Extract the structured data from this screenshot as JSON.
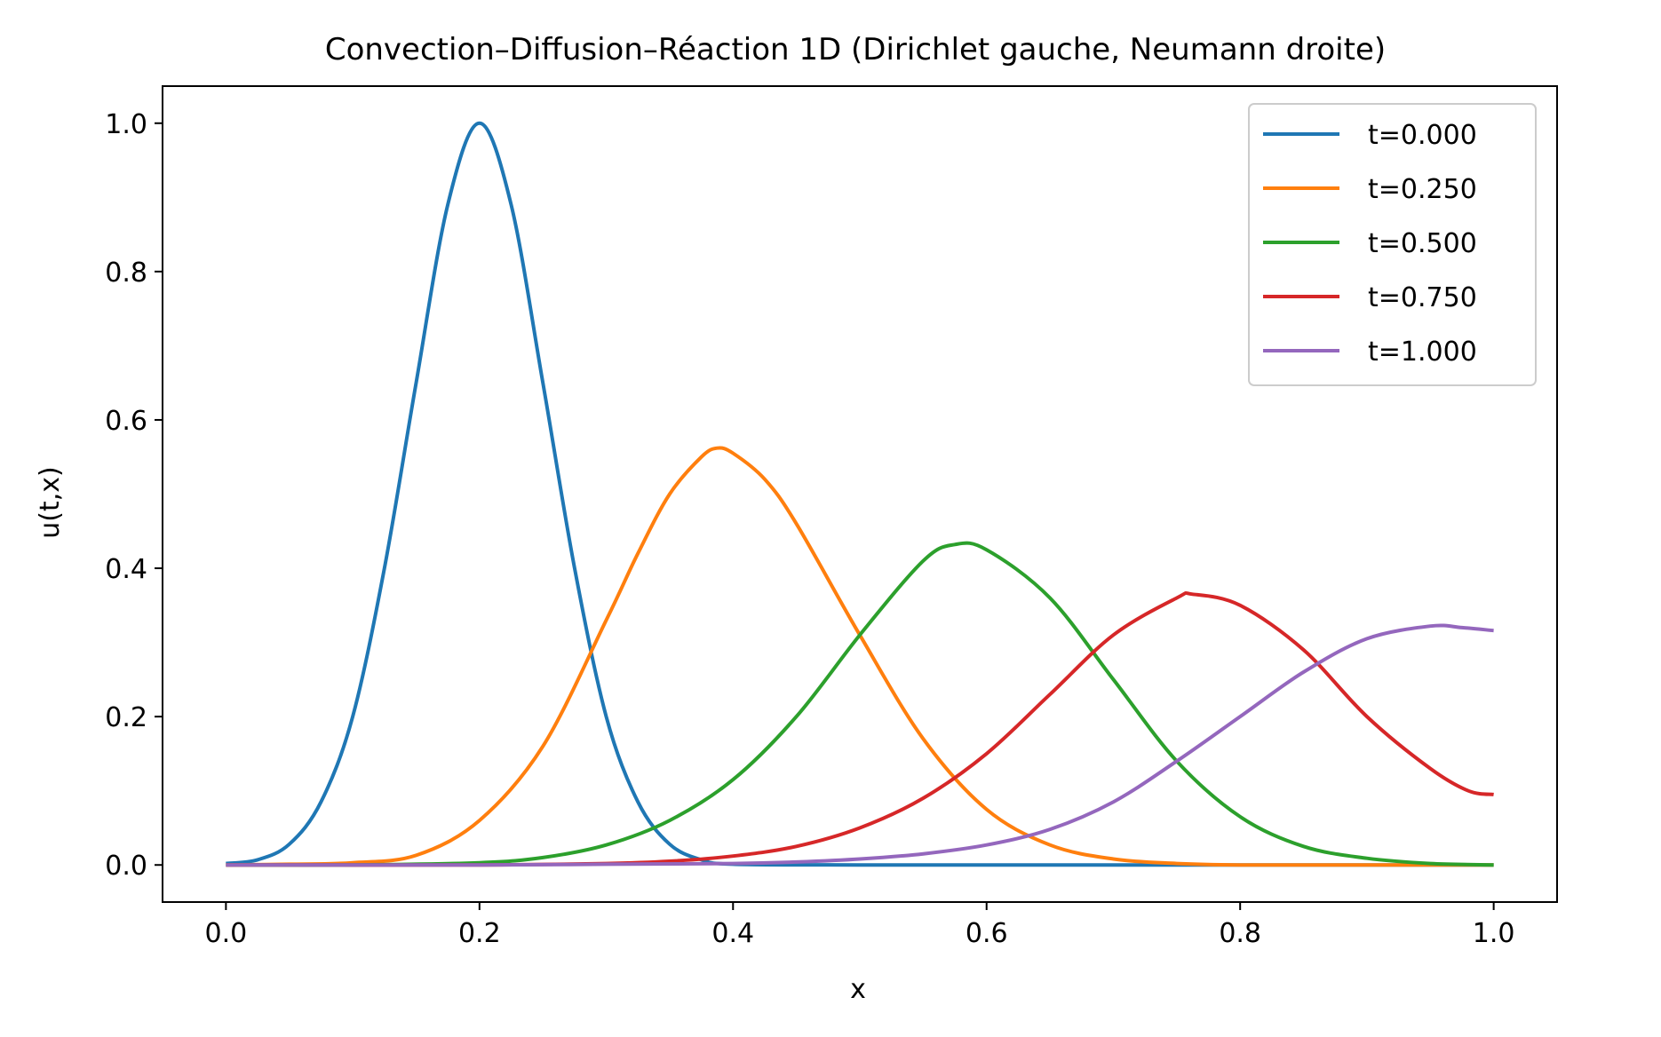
{
  "chart_data": {
    "type": "line",
    "title": "Convection–Diffusion–Réaction 1D (Dirichlet gauche, Neumann droite)",
    "xlabel": "x",
    "ylabel": "u(t,x)",
    "xlim": [
      -0.05,
      1.05
    ],
    "ylim": [
      -0.05,
      1.05
    ],
    "xticks": [
      0.0,
      0.2,
      0.4,
      0.6,
      0.8,
      1.0
    ],
    "xtick_labels": [
      "0.0",
      "0.2",
      "0.4",
      "0.6",
      "0.8",
      "1.0"
    ],
    "yticks": [
      0.0,
      0.2,
      0.4,
      0.6,
      0.8,
      1.0
    ],
    "ytick_labels": [
      "0.0",
      "0.2",
      "0.4",
      "0.6",
      "0.8",
      "1.0"
    ],
    "grid": false,
    "legend_position": "top-right",
    "series": [
      {
        "name": "t=0.000",
        "color": "#1f77b4",
        "x": [
          0.0,
          0.025,
          0.05,
          0.075,
          0.1,
          0.125,
          0.15,
          0.175,
          0.2,
          0.225,
          0.25,
          0.275,
          0.3,
          0.325,
          0.35,
          0.375,
          0.4,
          0.5,
          0.6,
          0.7,
          0.8,
          0.9,
          1.0
        ],
        "y": [
          0.002,
          0.007,
          0.028,
          0.085,
          0.2,
          0.4,
          0.65,
          0.89,
          1.0,
          0.89,
          0.65,
          0.4,
          0.2,
          0.085,
          0.028,
          0.007,
          0.001,
          0.0,
          0.0,
          0.0,
          0.0,
          0.0,
          0.0
        ]
      },
      {
        "name": "t=0.250",
        "color": "#ff7f0e",
        "x": [
          0.0,
          0.05,
          0.1,
          0.15,
          0.2,
          0.25,
          0.3,
          0.325,
          0.35,
          0.375,
          0.3875,
          0.4,
          0.425,
          0.45,
          0.5,
          0.55,
          0.6,
          0.65,
          0.7,
          0.75,
          0.8,
          0.9,
          1.0
        ],
        "y": [
          0.0,
          0.001,
          0.003,
          0.013,
          0.06,
          0.16,
          0.33,
          0.42,
          0.5,
          0.55,
          0.562,
          0.555,
          0.52,
          0.46,
          0.31,
          0.17,
          0.075,
          0.027,
          0.008,
          0.002,
          0.0,
          0.0,
          0.0
        ]
      },
      {
        "name": "t=0.500",
        "color": "#2ca02c",
        "x": [
          0.0,
          0.1,
          0.2,
          0.25,
          0.3,
          0.35,
          0.4,
          0.45,
          0.5,
          0.55,
          0.575,
          0.6,
          0.65,
          0.7,
          0.75,
          0.8,
          0.85,
          0.9,
          0.95,
          1.0
        ],
        "y": [
          0.0,
          0.0,
          0.003,
          0.01,
          0.027,
          0.06,
          0.115,
          0.2,
          0.31,
          0.41,
          0.432,
          0.425,
          0.36,
          0.25,
          0.14,
          0.065,
          0.025,
          0.009,
          0.002,
          0.0
        ]
      },
      {
        "name": "t=0.750",
        "color": "#d62728",
        "x": [
          0.0,
          0.2,
          0.3,
          0.35,
          0.4,
          0.45,
          0.5,
          0.55,
          0.6,
          0.65,
          0.7,
          0.75,
          0.7625,
          0.8,
          0.85,
          0.9,
          0.95,
          0.98,
          1.0
        ],
        "y": [
          0.0,
          0.0,
          0.002,
          0.005,
          0.012,
          0.025,
          0.05,
          0.09,
          0.15,
          0.23,
          0.31,
          0.36,
          0.365,
          0.35,
          0.29,
          0.2,
          0.13,
          0.1,
          0.095
        ]
      },
      {
        "name": "t=1.000",
        "color": "#9467bd",
        "x": [
          0.0,
          0.2,
          0.3,
          0.4,
          0.45,
          0.5,
          0.55,
          0.6,
          0.65,
          0.7,
          0.75,
          0.8,
          0.85,
          0.9,
          0.95,
          0.975,
          1.0
        ],
        "y": [
          0.0,
          0.0,
          0.001,
          0.002,
          0.004,
          0.008,
          0.015,
          0.027,
          0.048,
          0.085,
          0.14,
          0.2,
          0.26,
          0.305,
          0.322,
          0.32,
          0.316
        ]
      }
    ]
  }
}
